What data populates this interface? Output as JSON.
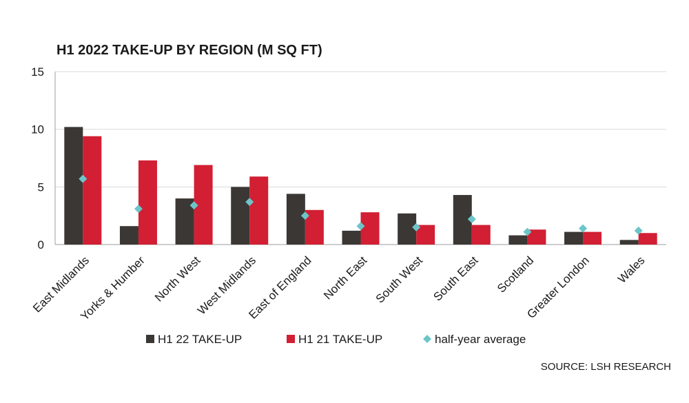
{
  "chart_data": {
    "type": "bar",
    "title": "H1 2022 TAKE-UP BY REGION (M SQ FT)",
    "categories": [
      "East Midlands",
      "Yorks & Humber",
      "North West",
      "West Midlands",
      "East of England",
      "North East",
      "South West",
      "South East",
      "Scotland",
      "Greater London",
      "Wales"
    ],
    "series": [
      {
        "name": "H1 22 TAKE-UP",
        "type": "bar",
        "color": "#3b3734",
        "values": [
          10.2,
          1.6,
          4.0,
          5.0,
          4.4,
          1.2,
          2.7,
          4.3,
          0.8,
          1.1,
          0.4
        ]
      },
      {
        "name": "H1 21 TAKE-UP",
        "type": "bar",
        "color": "#d21f33",
        "values": [
          9.4,
          7.3,
          6.9,
          5.9,
          3.0,
          2.8,
          1.7,
          1.7,
          1.3,
          1.1,
          1.0
        ]
      },
      {
        "name": "half-year average",
        "type": "scatter",
        "marker": "diamond",
        "color": "#6cc5c8",
        "values": [
          5.7,
          3.1,
          3.4,
          3.7,
          2.5,
          1.6,
          1.5,
          2.2,
          1.1,
          1.4,
          1.2
        ]
      }
    ],
    "ylim": [
      0,
      15
    ],
    "yticks": [
      0,
      5,
      10,
      15
    ],
    "grid": true,
    "legend_position": "bottom",
    "source": "SOURCE: LSH RESEARCH"
  }
}
